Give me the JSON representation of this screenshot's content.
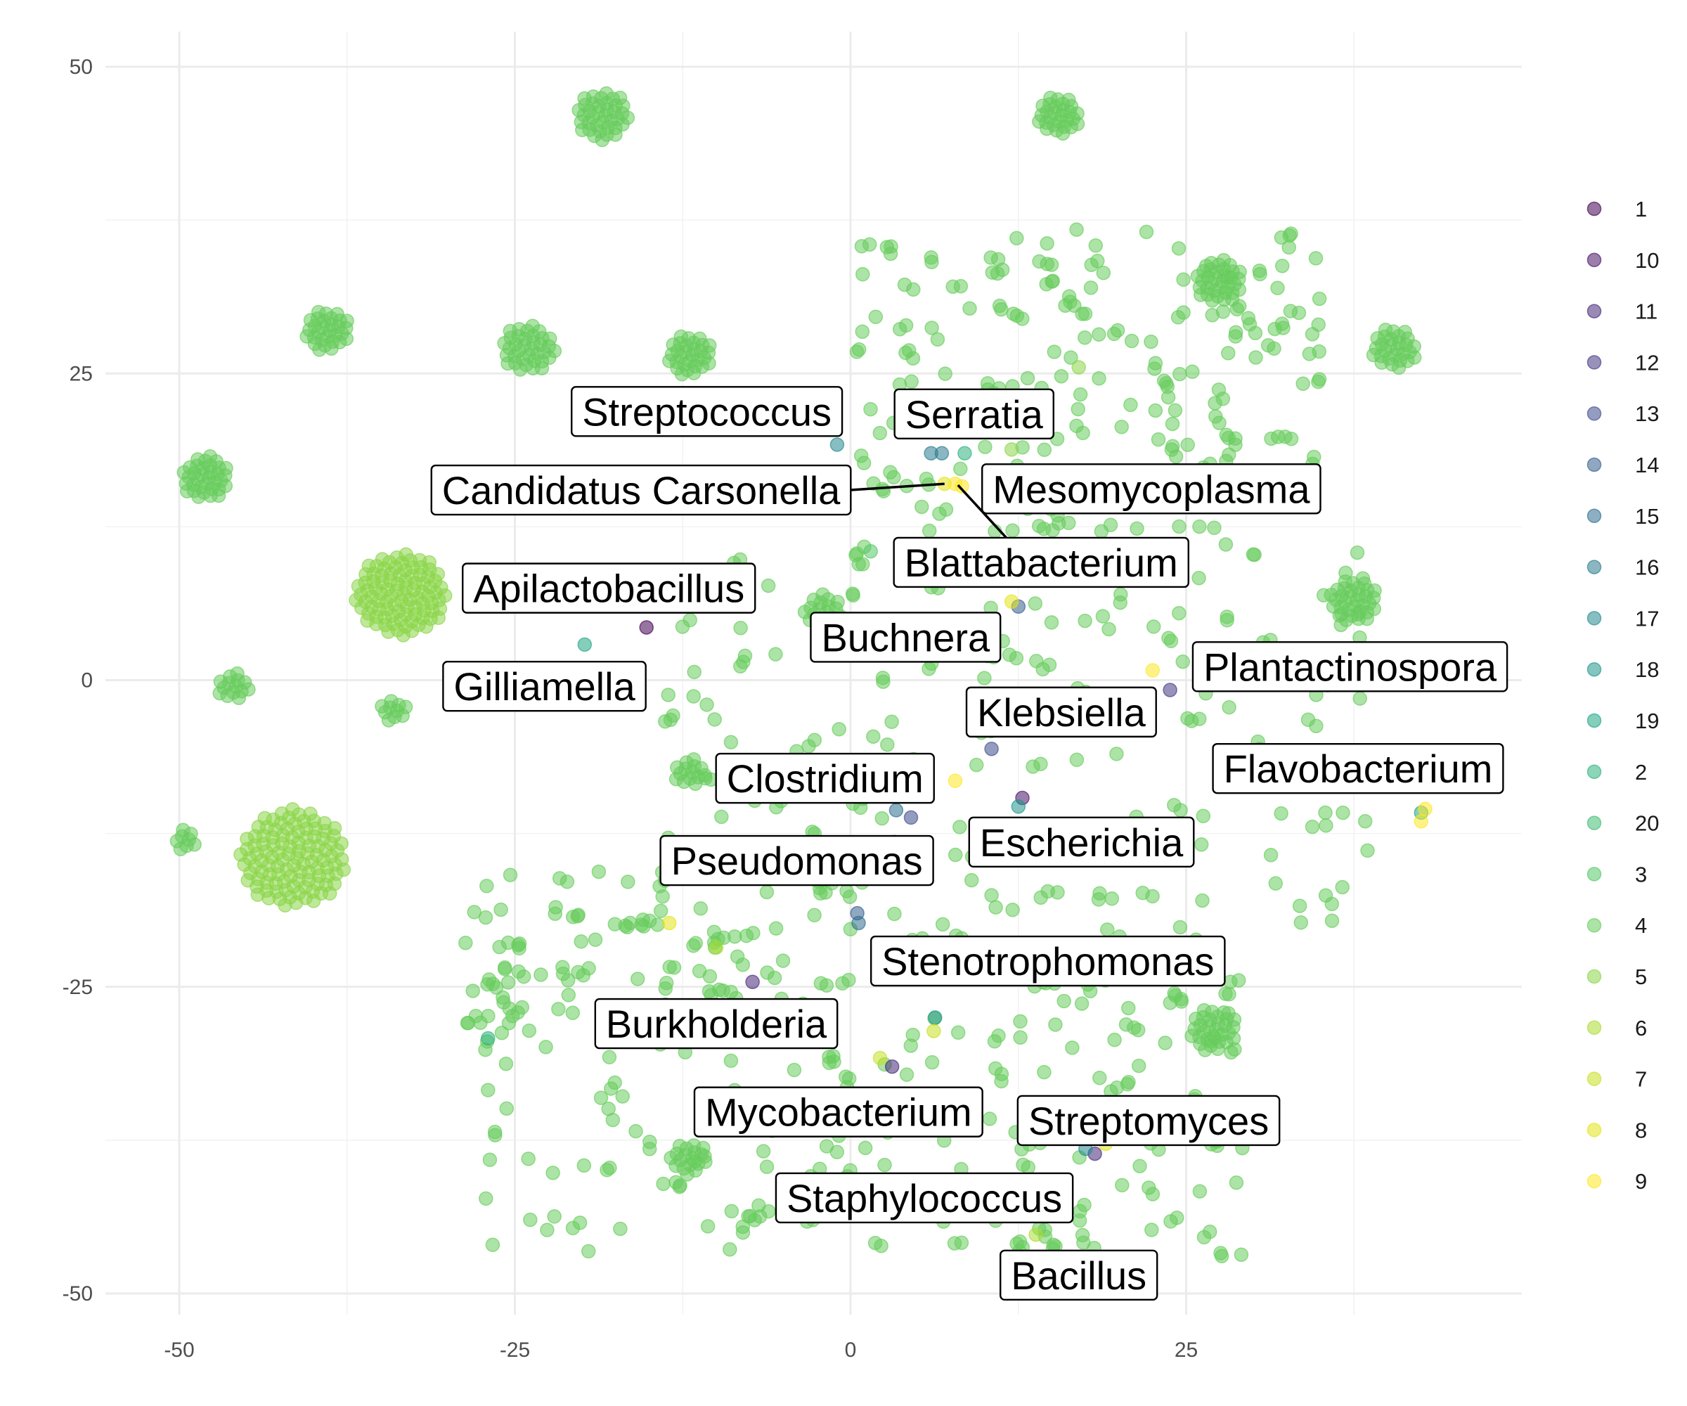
{
  "chart_data": {
    "type": "scatter",
    "title": "",
    "xlabel": "",
    "ylabel": "",
    "xlim": [
      -55,
      50
    ],
    "ylim": [
      -52,
      52
    ],
    "x_ticks": [
      -50,
      -25,
      0,
      25
    ],
    "y_ticks": [
      50,
      25,
      0,
      -25,
      -50
    ],
    "x_tick_labels": [
      "-50",
      "-25",
      "0",
      "25"
    ],
    "y_tick_labels": [
      "50",
      "25",
      "0",
      "-25",
      "-50"
    ],
    "grid": true,
    "legend_position": "right",
    "legend": {
      "entries": [
        "1",
        "10",
        "11",
        "12",
        "13",
        "14",
        "15",
        "16",
        "17",
        "18",
        "19",
        "2",
        "20",
        "3",
        "4",
        "5",
        "6",
        "7",
        "8",
        "9"
      ],
      "colors": [
        "#440154",
        "#482576",
        "#414487",
        "#35608d",
        "#2a788e",
        "#21908c",
        "#22a884",
        "#43bf71",
        "#7ad151",
        "#bddf26",
        "#fde725"
      ]
    },
    "palette": {
      "1": "#440154",
      "10": "#481467",
      "11": "#472878",
      "12": "#433983",
      "13": "#3d4d8a",
      "14": "#355e8d",
      "15": "#2e6e8e",
      "16": "#297b8e",
      "17": "#24888e",
      "18": "#1f958b",
      "19": "#21a585",
      "2": "#2db27d",
      "20": "#40bd72",
      "3": "#55c667",
      "4": "#67cc5c",
      "5": "#8ad548",
      "6": "#abdc32",
      "7": "#c6e021",
      "8": "#e3e418",
      "9": "#fde725"
    },
    "clusters": [
      {
        "group": "4",
        "x": -18.5,
        "y": 46.0,
        "r": 2.0,
        "n": 38
      },
      {
        "group": "4",
        "x": 15.5,
        "y": 46.0,
        "r": 1.6,
        "n": 28
      },
      {
        "group": "4",
        "x": -39.0,
        "y": 28.5,
        "r": 1.7,
        "n": 30
      },
      {
        "group": "4",
        "x": -24.0,
        "y": 27.0,
        "r": 2.0,
        "n": 36
      },
      {
        "group": "4",
        "x": -12.0,
        "y": 26.5,
        "r": 1.7,
        "n": 30
      },
      {
        "group": "4",
        "x": 27.5,
        "y": 32.5,
        "r": 1.8,
        "n": 34
      },
      {
        "group": "4",
        "x": 40.5,
        "y": 27.0,
        "r": 1.7,
        "n": 28
      },
      {
        "group": "4",
        "x": -48.0,
        "y": 16.5,
        "r": 1.8,
        "n": 34
      },
      {
        "group": "5",
        "x": -33.5,
        "y": 7.0,
        "r": 3.4,
        "n": 95
      },
      {
        "group": "4",
        "x": 37.5,
        "y": 6.5,
        "r": 1.8,
        "n": 32
      },
      {
        "group": "4",
        "x": -46.0,
        "y": -0.5,
        "r": 1.2,
        "n": 14
      },
      {
        "group": "4",
        "x": -34.0,
        "y": -2.5,
        "r": 1.0,
        "n": 10
      },
      {
        "group": "5",
        "x": -41.5,
        "y": -14.5,
        "r": 4.0,
        "n": 110
      },
      {
        "group": "4",
        "x": -49.5,
        "y": -13.0,
        "r": 0.9,
        "n": 8
      },
      {
        "group": "4",
        "x": 27.0,
        "y": -28.5,
        "r": 1.8,
        "n": 30
      },
      {
        "group": "4",
        "x": -12.0,
        "y": -39.0,
        "r": 1.4,
        "n": 18
      },
      {
        "group": "4",
        "x": -12.0,
        "y": -7.5,
        "r": 1.2,
        "n": 14
      },
      {
        "group": "4",
        "x": -2.0,
        "y": 5.5,
        "r": 1.5,
        "n": 20
      }
    ],
    "scatter_regions": [
      {
        "group": "4",
        "x": [
          0,
          35
        ],
        "y": [
          12,
          37
        ],
        "n": 170
      },
      {
        "group": "4",
        "x": [
          -15,
          40
        ],
        "y": [
          -20,
          12
        ],
        "n": 180
      },
      {
        "group": "4",
        "x": [
          -28,
          30
        ],
        "y": [
          -47,
          -20
        ],
        "n": 230
      },
      {
        "group": "4",
        "x": [
          -30,
          -5
        ],
        "y": [
          -28,
          -15
        ],
        "n": 50
      }
    ],
    "other_points": [
      {
        "group": "1",
        "x": -15.2,
        "y": 4.3
      },
      {
        "group": "10",
        "x": 12.8,
        "y": -9.6
      },
      {
        "group": "11",
        "x": 3.1,
        "y": -31.5
      },
      {
        "group": "11",
        "x": 18.2,
        "y": -38.6
      },
      {
        "group": "11",
        "x": -7.3,
        "y": -24.6
      },
      {
        "group": "12",
        "x": 23.8,
        "y": -0.8
      },
      {
        "group": "13",
        "x": 10.5,
        "y": -5.6
      },
      {
        "group": "13",
        "x": 4.5,
        "y": -11.2
      },
      {
        "group": "14",
        "x": 12.5,
        "y": 6.0
      },
      {
        "group": "14",
        "x": 0.5,
        "y": -19.0
      },
      {
        "group": "15",
        "x": 3.4,
        "y": -10.6
      },
      {
        "group": "15",
        "x": 0.6,
        "y": -19.8
      },
      {
        "group": "16",
        "x": 6.0,
        "y": 18.5
      },
      {
        "group": "16",
        "x": 6.8,
        "y": 18.5
      },
      {
        "group": "17",
        "x": -1.0,
        "y": 19.2
      },
      {
        "group": "17",
        "x": 17.5,
        "y": -38.2
      },
      {
        "group": "18",
        "x": 12.5,
        "y": -10.3
      },
      {
        "group": "18",
        "x": 6.3,
        "y": -27.5
      },
      {
        "group": "19",
        "x": -19.8,
        "y": 2.9
      },
      {
        "group": "19",
        "x": 42.5,
        "y": -10.8
      },
      {
        "group": "2",
        "x": -27.0,
        "y": -29.2
      },
      {
        "group": "2",
        "x": 8.5,
        "y": 18.5
      },
      {
        "group": "3",
        "x": 1.5,
        "y": 10.5
      },
      {
        "group": "5",
        "x": 17.0,
        "y": 25.5
      },
      {
        "group": "5",
        "x": 12.0,
        "y": 18.8
      },
      {
        "group": "6",
        "x": 13.8,
        "y": -45.2
      },
      {
        "group": "6",
        "x": -10.0,
        "y": -21.8
      },
      {
        "group": "7",
        "x": 6.2,
        "y": -28.6
      },
      {
        "group": "7",
        "x": 2.2,
        "y": -30.8
      },
      {
        "group": "8",
        "x": 7.0,
        "y": 16.0
      },
      {
        "group": "8",
        "x": 12.0,
        "y": 6.4
      },
      {
        "group": "8",
        "x": -13.5,
        "y": -19.8
      },
      {
        "group": "8",
        "x": 19.0,
        "y": -37.8
      },
      {
        "group": "9",
        "x": 7.8,
        "y": 16.0
      },
      {
        "group": "9",
        "x": 8.3,
        "y": 15.8
      },
      {
        "group": "9",
        "x": 22.5,
        "y": 0.8
      },
      {
        "group": "9",
        "x": 7.8,
        "y": -8.2
      },
      {
        "group": "9",
        "x": 42.5,
        "y": -11.5
      },
      {
        "group": "9",
        "x": 42.8,
        "y": -10.5
      }
    ],
    "annotations": [
      {
        "text": "Streptococcus",
        "x": -10.7,
        "y": 21.9
      },
      {
        "text": "Serratia",
        "x": 9.2,
        "y": 21.7
      },
      {
        "text": "Candidatus Carsonella",
        "x": -15.6,
        "y": 15.5
      },
      {
        "text": "Mesomycoplasma",
        "x": 22.4,
        "y": 15.6
      },
      {
        "text": "Blattabacterium",
        "x": 14.2,
        "y": 9.6
      },
      {
        "text": "Apilactobacillus",
        "x": -18.0,
        "y": 7.5
      },
      {
        "text": "Buchnera",
        "x": 4.1,
        "y": 3.5
      },
      {
        "text": "Plantactinospora",
        "x": 37.2,
        "y": 1.1
      },
      {
        "text": "Gilliamella",
        "x": -22.8,
        "y": -0.5
      },
      {
        "text": "Klebsiella",
        "x": 15.7,
        "y": -2.6
      },
      {
        "text": "Flavobacterium",
        "x": 37.8,
        "y": -7.2
      },
      {
        "text": "Clostridium",
        "x": -1.9,
        "y": -8.0
      },
      {
        "text": "Escherichia",
        "x": 17.2,
        "y": -13.2
      },
      {
        "text": "Pseudomonas",
        "x": -4.0,
        "y": -14.7
      },
      {
        "text": "Stenotrophomonas",
        "x": 14.7,
        "y": -22.9
      },
      {
        "text": "Burkholderia",
        "x": -10.0,
        "y": -28.0
      },
      {
        "text": "Mycobacterium",
        "x": -0.9,
        "y": -35.2
      },
      {
        "text": "Streptomyces",
        "x": 22.2,
        "y": -35.9
      },
      {
        "text": "Staphylococcus",
        "x": 5.5,
        "y": -42.2
      },
      {
        "text": "Bacillus",
        "x": 17.0,
        "y": -48.5
      }
    ],
    "leaders": [
      {
        "label": "Candidatus Carsonella",
        "to_x": 7.0,
        "to_y": 16.0
      },
      {
        "label": "Blattabacterium",
        "to_x": 8.0,
        "to_y": 15.9
      }
    ]
  }
}
